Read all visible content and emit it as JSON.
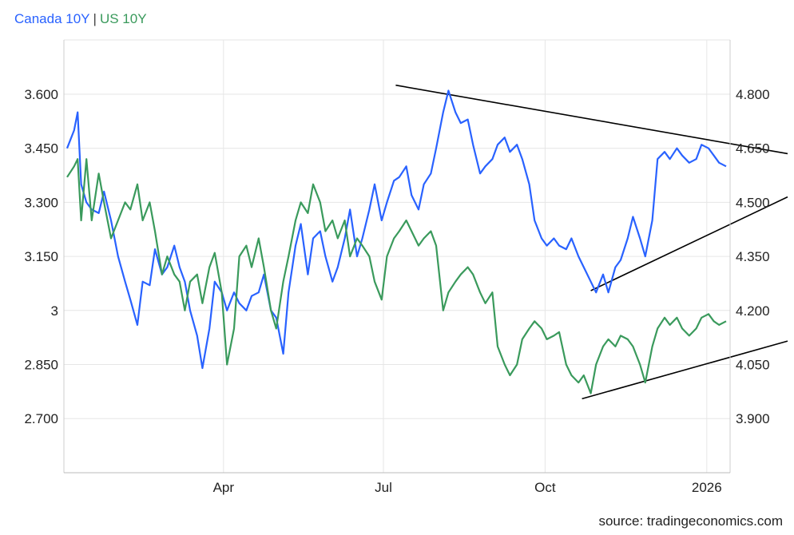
{
  "legend": {
    "items": [
      {
        "label": "Canada 10Y",
        "color": "#2962ff"
      },
      {
        "label": "US 10Y",
        "color": "#3a9a5c"
      }
    ],
    "separator": "|"
  },
  "source": "source: tradingeconomics.com",
  "colors": {
    "canada": "#2962ff",
    "us": "#3a9a5c",
    "grid": "#e6e6e6",
    "trendline": "#000000"
  },
  "chart_data": {
    "type": "line",
    "x_ticks": [
      {
        "label": "Apr",
        "date": "2025-04-01"
      },
      {
        "label": "Jul",
        "date": "2025-07-01"
      },
      {
        "label": "Oct",
        "date": "2025-10-01"
      },
      {
        "label": "2026",
        "date": "2026-01-01"
      }
    ],
    "x_range": [
      "2025-01-02",
      "2026-01-12"
    ],
    "y_left": {
      "ticks": [
        "3.600",
        "3.450",
        "3.300",
        "3.150",
        "3",
        "2.850",
        "2.700"
      ],
      "values": [
        3.6,
        3.45,
        3.3,
        3.15,
        3.0,
        2.85,
        2.7
      ],
      "range": [
        2.55,
        3.75
      ]
    },
    "y_right": {
      "ticks": [
        "4.800",
        "4.650",
        "4.500",
        "4.350",
        "4.200",
        "4.050",
        "3.900"
      ],
      "values": [
        4.8,
        4.65,
        4.5,
        4.35,
        4.2,
        4.05,
        3.9
      ],
      "range": [
        3.75,
        4.95
      ]
    },
    "grid": true,
    "legend_position": "top-left",
    "series": [
      {
        "name": "Canada 10Y",
        "axis": "left",
        "color": "#2962ff",
        "points": [
          [
            "2025-01-02",
            3.45
          ],
          [
            "2025-01-06",
            3.5
          ],
          [
            "2025-01-08",
            3.55
          ],
          [
            "2025-01-10",
            3.35
          ],
          [
            "2025-01-13",
            3.3
          ],
          [
            "2025-01-16",
            3.28
          ],
          [
            "2025-01-20",
            3.27
          ],
          [
            "2025-01-23",
            3.33
          ],
          [
            "2025-01-27",
            3.25
          ],
          [
            "2025-01-31",
            3.15
          ],
          [
            "2025-02-04",
            3.08
          ],
          [
            "2025-02-07",
            3.03
          ],
          [
            "2025-02-11",
            2.96
          ],
          [
            "2025-02-14",
            3.08
          ],
          [
            "2025-02-18",
            3.07
          ],
          [
            "2025-02-21",
            3.17
          ],
          [
            "2025-02-25",
            3.1
          ],
          [
            "2025-02-28",
            3.12
          ],
          [
            "2025-03-04",
            3.18
          ],
          [
            "2025-03-07",
            3.12
          ],
          [
            "2025-03-10",
            3.08
          ],
          [
            "2025-03-13",
            3.0
          ],
          [
            "2025-03-17",
            2.93
          ],
          [
            "2025-03-20",
            2.84
          ],
          [
            "2025-03-24",
            2.95
          ],
          [
            "2025-03-27",
            3.08
          ],
          [
            "2025-03-31",
            3.05
          ],
          [
            "2025-04-03",
            3.0
          ],
          [
            "2025-04-07",
            3.05
          ],
          [
            "2025-04-10",
            3.02
          ],
          [
            "2025-04-14",
            3.0
          ],
          [
            "2025-04-17",
            3.04
          ],
          [
            "2025-04-21",
            3.05
          ],
          [
            "2025-04-24",
            3.1
          ],
          [
            "2025-04-28",
            3.0
          ],
          [
            "2025-05-01",
            2.98
          ],
          [
            "2025-05-05",
            2.88
          ],
          [
            "2025-05-08",
            3.05
          ],
          [
            "2025-05-12",
            3.18
          ],
          [
            "2025-05-15",
            3.24
          ],
          [
            "2025-05-19",
            3.1
          ],
          [
            "2025-05-22",
            3.2
          ],
          [
            "2025-05-26",
            3.22
          ],
          [
            "2025-05-29",
            3.15
          ],
          [
            "2025-06-02",
            3.08
          ],
          [
            "2025-06-05",
            3.12
          ],
          [
            "2025-06-09",
            3.2
          ],
          [
            "2025-06-12",
            3.28
          ],
          [
            "2025-06-16",
            3.15
          ],
          [
            "2025-06-19",
            3.2
          ],
          [
            "2025-06-23",
            3.28
          ],
          [
            "2025-06-26",
            3.35
          ],
          [
            "2025-06-30",
            3.25
          ],
          [
            "2025-07-03",
            3.3
          ],
          [
            "2025-07-07",
            3.36
          ],
          [
            "2025-07-10",
            3.37
          ],
          [
            "2025-07-14",
            3.4
          ],
          [
            "2025-07-17",
            3.32
          ],
          [
            "2025-07-21",
            3.28
          ],
          [
            "2025-07-24",
            3.35
          ],
          [
            "2025-07-28",
            3.38
          ],
          [
            "2025-07-31",
            3.45
          ],
          [
            "2025-08-04",
            3.55
          ],
          [
            "2025-08-07",
            3.61
          ],
          [
            "2025-08-11",
            3.55
          ],
          [
            "2025-08-14",
            3.52
          ],
          [
            "2025-08-18",
            3.53
          ],
          [
            "2025-08-21",
            3.46
          ],
          [
            "2025-08-25",
            3.38
          ],
          [
            "2025-08-28",
            3.4
          ],
          [
            "2025-09-01",
            3.42
          ],
          [
            "2025-09-04",
            3.46
          ],
          [
            "2025-09-08",
            3.48
          ],
          [
            "2025-09-11",
            3.44
          ],
          [
            "2025-09-15",
            3.46
          ],
          [
            "2025-09-18",
            3.42
          ],
          [
            "2025-09-22",
            3.35
          ],
          [
            "2025-09-25",
            3.25
          ],
          [
            "2025-09-29",
            3.2
          ],
          [
            "2025-10-02",
            3.18
          ],
          [
            "2025-10-06",
            3.2
          ],
          [
            "2025-10-09",
            3.18
          ],
          [
            "2025-10-13",
            3.17
          ],
          [
            "2025-10-16",
            3.2
          ],
          [
            "2025-10-20",
            3.15
          ],
          [
            "2025-10-23",
            3.12
          ],
          [
            "2025-10-27",
            3.08
          ],
          [
            "2025-10-30",
            3.05
          ],
          [
            "2025-11-03",
            3.1
          ],
          [
            "2025-11-06",
            3.05
          ],
          [
            "2025-11-10",
            3.12
          ],
          [
            "2025-11-13",
            3.14
          ],
          [
            "2025-11-17",
            3.2
          ],
          [
            "2025-11-20",
            3.26
          ],
          [
            "2025-11-24",
            3.2
          ],
          [
            "2025-11-27",
            3.15
          ],
          [
            "2025-12-01",
            3.25
          ],
          [
            "2025-12-04",
            3.42
          ],
          [
            "2025-12-08",
            3.44
          ],
          [
            "2025-12-11",
            3.42
          ],
          [
            "2025-12-15",
            3.45
          ],
          [
            "2025-12-18",
            3.43
          ],
          [
            "2025-12-22",
            3.41
          ],
          [
            "2025-12-26",
            3.42
          ],
          [
            "2025-12-29",
            3.46
          ],
          [
            "2026-01-02",
            3.45
          ],
          [
            "2026-01-05",
            3.43
          ],
          [
            "2026-01-08",
            3.41
          ],
          [
            "2026-01-12",
            3.4
          ]
        ]
      },
      {
        "name": "US 10Y",
        "axis": "right",
        "color": "#3a9a5c",
        "points": [
          [
            "2025-01-02",
            4.57
          ],
          [
            "2025-01-06",
            4.6
          ],
          [
            "2025-01-08",
            4.62
          ],
          [
            "2025-01-10",
            4.45
          ],
          [
            "2025-01-13",
            4.62
          ],
          [
            "2025-01-16",
            4.45
          ],
          [
            "2025-01-20",
            4.58
          ],
          [
            "2025-01-23",
            4.5
          ],
          [
            "2025-01-27",
            4.4
          ],
          [
            "2025-01-31",
            4.45
          ],
          [
            "2025-02-04",
            4.5
          ],
          [
            "2025-02-07",
            4.48
          ],
          [
            "2025-02-11",
            4.55
          ],
          [
            "2025-02-14",
            4.45
          ],
          [
            "2025-02-18",
            4.5
          ],
          [
            "2025-02-21",
            4.42
          ],
          [
            "2025-02-25",
            4.3
          ],
          [
            "2025-02-28",
            4.35
          ],
          [
            "2025-03-04",
            4.3
          ],
          [
            "2025-03-07",
            4.28
          ],
          [
            "2025-03-10",
            4.2
          ],
          [
            "2025-03-13",
            4.28
          ],
          [
            "2025-03-17",
            4.3
          ],
          [
            "2025-03-20",
            4.22
          ],
          [
            "2025-03-24",
            4.32
          ],
          [
            "2025-03-27",
            4.36
          ],
          [
            "2025-03-31",
            4.25
          ],
          [
            "2025-04-03",
            4.05
          ],
          [
            "2025-04-07",
            4.15
          ],
          [
            "2025-04-10",
            4.35
          ],
          [
            "2025-04-14",
            4.38
          ],
          [
            "2025-04-17",
            4.32
          ],
          [
            "2025-04-21",
            4.4
          ],
          [
            "2025-04-24",
            4.32
          ],
          [
            "2025-04-28",
            4.2
          ],
          [
            "2025-05-01",
            4.15
          ],
          [
            "2025-05-05",
            4.28
          ],
          [
            "2025-05-08",
            4.35
          ],
          [
            "2025-05-12",
            4.45
          ],
          [
            "2025-05-15",
            4.5
          ],
          [
            "2025-05-19",
            4.47
          ],
          [
            "2025-05-22",
            4.55
          ],
          [
            "2025-05-26",
            4.5
          ],
          [
            "2025-05-29",
            4.42
          ],
          [
            "2025-06-02",
            4.45
          ],
          [
            "2025-06-05",
            4.4
          ],
          [
            "2025-06-09",
            4.45
          ],
          [
            "2025-06-12",
            4.35
          ],
          [
            "2025-06-16",
            4.4
          ],
          [
            "2025-06-19",
            4.38
          ],
          [
            "2025-06-23",
            4.35
          ],
          [
            "2025-06-26",
            4.28
          ],
          [
            "2025-06-30",
            4.23
          ],
          [
            "2025-07-03",
            4.35
          ],
          [
            "2025-07-07",
            4.4
          ],
          [
            "2025-07-10",
            4.42
          ],
          [
            "2025-07-14",
            4.45
          ],
          [
            "2025-07-17",
            4.42
          ],
          [
            "2025-07-21",
            4.38
          ],
          [
            "2025-07-24",
            4.4
          ],
          [
            "2025-07-28",
            4.42
          ],
          [
            "2025-07-31",
            4.38
          ],
          [
            "2025-08-04",
            4.2
          ],
          [
            "2025-08-07",
            4.25
          ],
          [
            "2025-08-11",
            4.28
          ],
          [
            "2025-08-14",
            4.3
          ],
          [
            "2025-08-18",
            4.32
          ],
          [
            "2025-08-21",
            4.3
          ],
          [
            "2025-08-25",
            4.25
          ],
          [
            "2025-08-28",
            4.22
          ],
          [
            "2025-09-01",
            4.25
          ],
          [
            "2025-09-04",
            4.1
          ],
          [
            "2025-09-08",
            4.05
          ],
          [
            "2025-09-11",
            4.02
          ],
          [
            "2025-09-15",
            4.05
          ],
          [
            "2025-09-18",
            4.12
          ],
          [
            "2025-09-22",
            4.15
          ],
          [
            "2025-09-25",
            4.17
          ],
          [
            "2025-09-29",
            4.15
          ],
          [
            "2025-10-02",
            4.12
          ],
          [
            "2025-10-06",
            4.13
          ],
          [
            "2025-10-09",
            4.14
          ],
          [
            "2025-10-13",
            4.05
          ],
          [
            "2025-10-16",
            4.02
          ],
          [
            "2025-10-20",
            4.0
          ],
          [
            "2025-10-23",
            4.02
          ],
          [
            "2025-10-27",
            3.97
          ],
          [
            "2025-10-30",
            4.05
          ],
          [
            "2025-11-03",
            4.1
          ],
          [
            "2025-11-06",
            4.12
          ],
          [
            "2025-11-10",
            4.1
          ],
          [
            "2025-11-13",
            4.13
          ],
          [
            "2025-11-17",
            4.12
          ],
          [
            "2025-11-20",
            4.1
          ],
          [
            "2025-11-24",
            4.05
          ],
          [
            "2025-11-27",
            4.0
          ],
          [
            "2025-12-01",
            4.1
          ],
          [
            "2025-12-04",
            4.15
          ],
          [
            "2025-12-08",
            4.18
          ],
          [
            "2025-12-11",
            4.16
          ],
          [
            "2025-12-15",
            4.18
          ],
          [
            "2025-12-18",
            4.15
          ],
          [
            "2025-12-22",
            4.13
          ],
          [
            "2025-12-26",
            4.15
          ],
          [
            "2025-12-29",
            4.18
          ],
          [
            "2026-01-02",
            4.19
          ],
          [
            "2026-01-05",
            4.17
          ],
          [
            "2026-01-08",
            4.16
          ],
          [
            "2026-01-12",
            4.17
          ]
        ]
      }
    ],
    "trendlines": [
      {
        "axis": "left",
        "from": [
          "2025-07-08",
          3.625
        ],
        "to": [
          "2026-02-16",
          3.435
        ]
      },
      {
        "axis": "left",
        "from": [
          "2025-10-27",
          3.055
        ],
        "to": [
          "2026-02-16",
          3.315
        ]
      },
      {
        "axis": "left",
        "from": [
          "2025-10-22",
          2.755
        ],
        "to": [
          "2026-02-16",
          2.915
        ]
      }
    ]
  }
}
